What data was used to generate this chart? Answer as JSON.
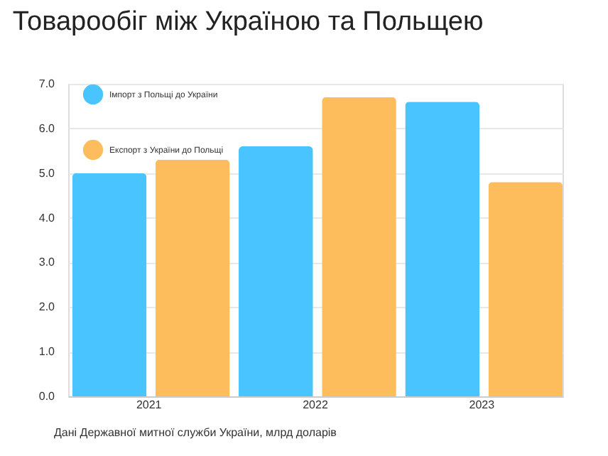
{
  "chart_data": {
    "type": "bar",
    "title": "Товарообіг між Україною та Польщею",
    "categories": [
      "2021",
      "2022",
      "2023"
    ],
    "series": [
      {
        "name": "Імпорт з Польщі до України",
        "color": "#4ac4fe",
        "values": [
          5.0,
          5.6,
          6.6
        ]
      },
      {
        "name": "Експорт з України до Польщі",
        "color": "#fdbd5c",
        "values": [
          5.3,
          6.7,
          4.8
        ]
      }
    ],
    "ylim": [
      0,
      7.0
    ],
    "yticks": [
      {
        "value": 0,
        "label": "0.0"
      },
      {
        "value": 1,
        "label": "1.0"
      },
      {
        "value": 2,
        "label": "2.0"
      },
      {
        "value": 3,
        "label": "3.0"
      },
      {
        "value": 4,
        "label": "4.0"
      },
      {
        "value": 5,
        "label": "5.0"
      },
      {
        "value": 6,
        "label": "6.0"
      },
      {
        "value": 7,
        "label": "7.0"
      }
    ],
    "grid": "y",
    "legend": "top left",
    "annotations": [
      "Дані Державної митної служби України, млрд доларів"
    ]
  }
}
